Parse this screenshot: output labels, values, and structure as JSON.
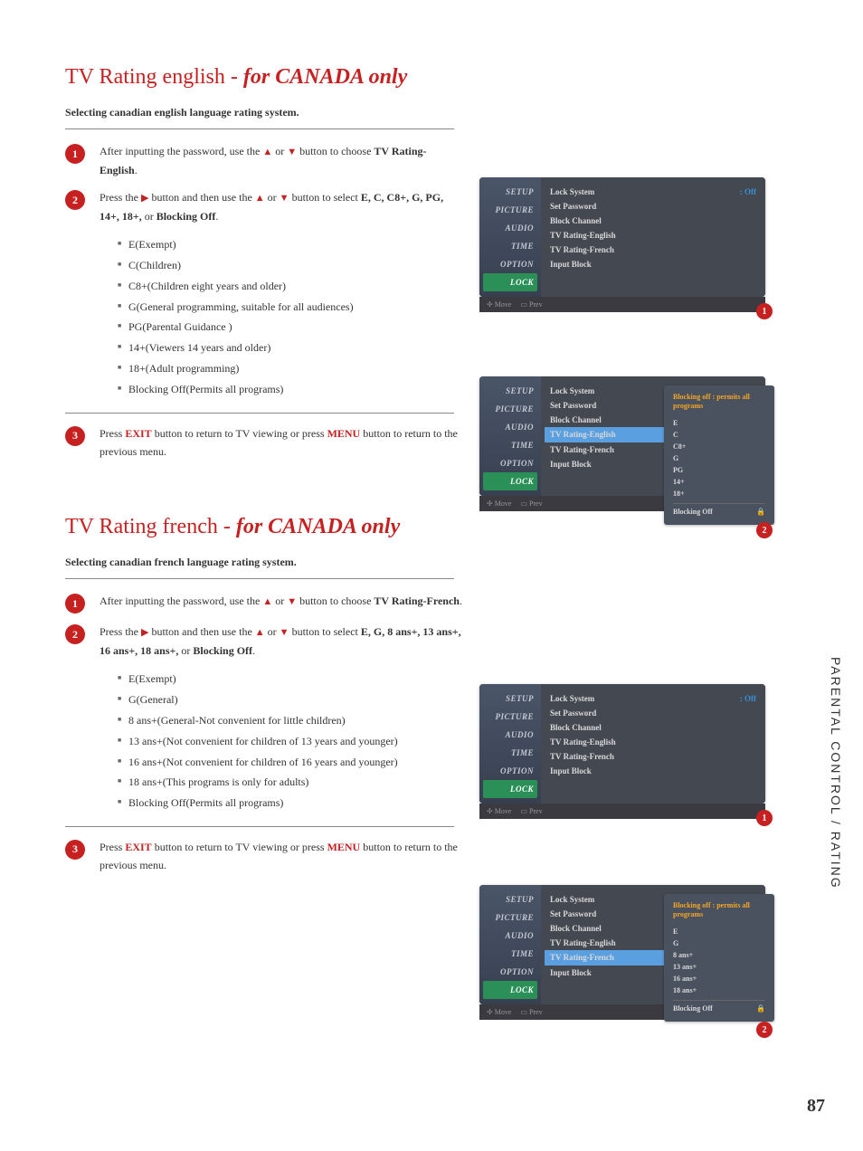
{
  "side_label": "PARENTAL CONTROL / RATING",
  "page_number": "87",
  "section_english": {
    "title_prefix": "TV Rating english - ",
    "title_italic": "for CANADA only",
    "subtitle": "Selecting canadian english language rating system.",
    "step1_a": "After inputting the password, use the ",
    "step1_b": " or ",
    "step1_c": " button to choose ",
    "step1_bold": "TV Rating-English",
    "step1_end": ".",
    "step2_a": "Press the ",
    "step2_b": " button and then use the ",
    "step2_c": " or ",
    "step2_d": " button to select ",
    "step2_opts": "E, C, C8+, G, PG, 14+, 18+,",
    "step2_or": " or ",
    "step2_last": "Blocking Off",
    "step2_end": ".",
    "bullets": [
      "E(Exempt)",
      "C(Children)",
      "C8+(Children eight years and older)",
      "G(General programming, suitable for all audiences)",
      "PG(Parental Guidance )",
      "14+(Viewers 14 years and older)",
      "18+(Adult programming)",
      "Blocking Off(Permits all programs)"
    ],
    "step3_a": "Press ",
    "step3_exit": "EXIT",
    "step3_b": " button to return to TV viewing or press ",
    "step3_menu": "MENU",
    "step3_c": " button to return to the previous menu."
  },
  "section_french": {
    "title_prefix": "TV Rating french - ",
    "title_italic": "for CANADA only",
    "subtitle": "Selecting canadian french language rating system.",
    "step1_a": "After inputting the password, use the ",
    "step1_b": " or ",
    "step1_c": " button to choose ",
    "step1_bold": "TV Rating-French",
    "step1_end": ".",
    "step2_a": "Press the ",
    "step2_b": " button and then use the ",
    "step2_c": " or ",
    "step2_d": " button to select ",
    "step2_opts": "E, G, 8 ans+, 13 ans+, 16 ans+, 18 ans+,",
    "step2_or": " or ",
    "step2_last": "Blocking Off",
    "step2_end": ".",
    "bullets": [
      "E(Exempt)",
      "G(General)",
      "8 ans+(General-Not convenient for little children)",
      "13 ans+(Not convenient for children of 13 years and younger)",
      "16 ans+(Not convenient for children of 16 years and younger)",
      "18 ans+(This programs is only for adults)",
      "Blocking Off(Permits all programs)"
    ],
    "step3_a": "Press ",
    "step3_exit": "EXIT",
    "step3_b": " button to return to TV viewing or press ",
    "step3_menu": "MENU",
    "step3_c": " button to return to the previous menu."
  },
  "tv_menu": {
    "sidebar": [
      "SETUP",
      "PICTURE",
      "AUDIO",
      "TIME",
      "OPTION",
      "LOCK"
    ],
    "rows": {
      "lock_system": "Lock System",
      "lock_value": ": Off",
      "set_password": "Set Password",
      "block_channel": "Block Channel",
      "rating_en": "TV Rating-English",
      "rating_fr": "TV Rating-French",
      "input_block": "Input Block"
    },
    "bottom_move": "Move",
    "bottom_prev": "Prev",
    "popup_en_title": "Blocking off : permits all programs",
    "popup_en_items": [
      "E",
      "C",
      "C8+",
      "G",
      "PG",
      "14+",
      "18+"
    ],
    "popup_en_last": "Blocking Off",
    "popup_fr_title": "Blocking off : permits all programs",
    "popup_fr_items": [
      "E",
      "G",
      "8 ans+",
      "13 ans+",
      "16 ans+",
      "18 ans+"
    ],
    "popup_fr_last": "Blocking Off",
    "arrow": "▶"
  },
  "badges": {
    "b1": "1",
    "b2": "2",
    "b3": "3"
  }
}
